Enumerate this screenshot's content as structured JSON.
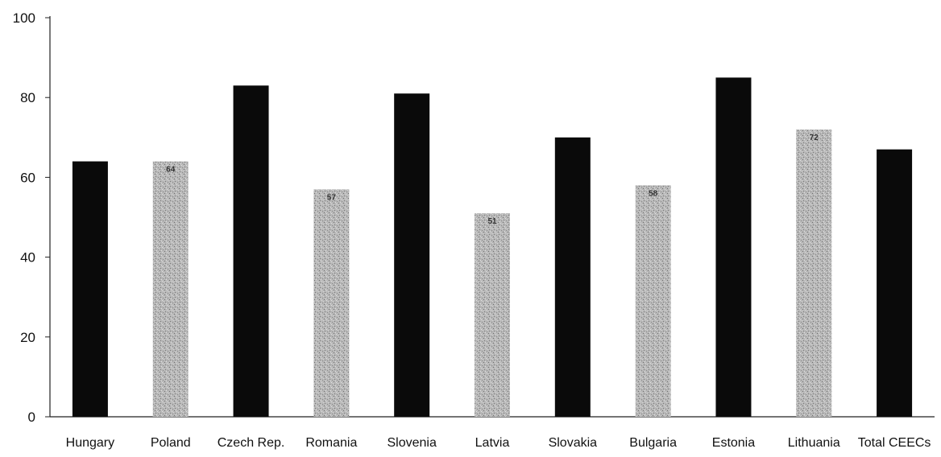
{
  "chart_data": {
    "type": "bar",
    "title": "",
    "xlabel": "",
    "ylabel": "",
    "ylim": [
      0,
      100
    ],
    "yticks": [
      0,
      20,
      40,
      60,
      80,
      100
    ],
    "grid": false,
    "categories": [
      "Hungary",
      "Poland",
      "Czech Rep.",
      "Romania",
      "Slovenia",
      "Latvia",
      "Slovakia",
      "Bulgaria",
      "Estonia",
      "Lithuania",
      "Total CEECs"
    ],
    "values": [
      64,
      64,
      83,
      57,
      81,
      51,
      70,
      58,
      85,
      72,
      67
    ],
    "bar_styles": [
      "solid",
      "hatched",
      "solid",
      "hatched",
      "solid",
      "hatched",
      "solid",
      "hatched",
      "solid",
      "hatched",
      "solid"
    ],
    "data_labels": [
      "",
      "64",
      "",
      "57",
      "",
      "51",
      "",
      "58",
      "",
      "72",
      ""
    ],
    "colors": {
      "solid": "#0a0a0a",
      "hatched": "#b4b4b4",
      "axis": "#222222"
    }
  }
}
